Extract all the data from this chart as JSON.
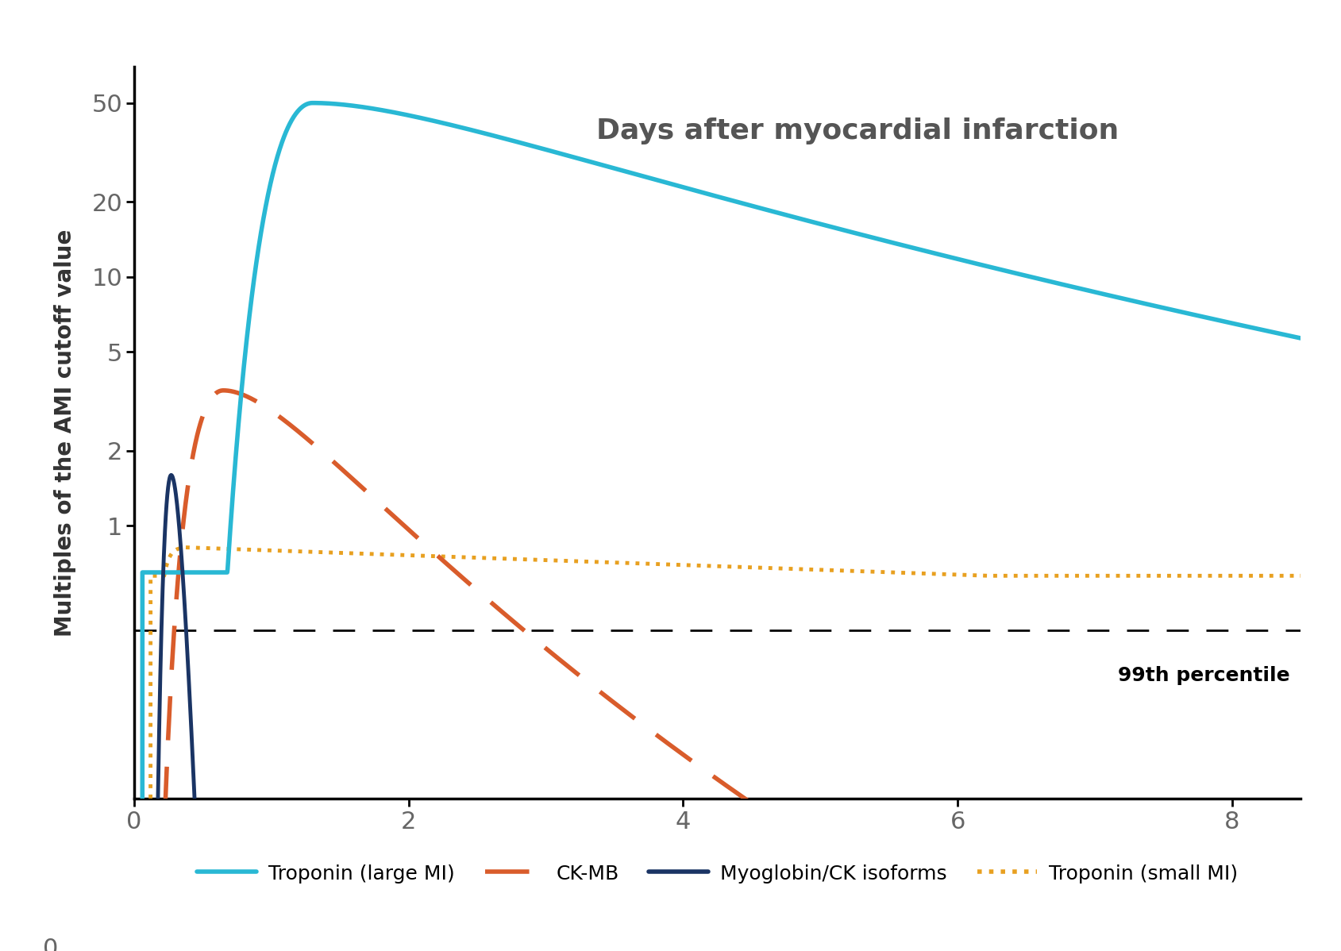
{
  "title": "Days after myocardial infarction",
  "ylabel": "Multiples of the AMI cutoff value",
  "xlim": [
    0,
    8.5
  ],
  "ylim_log": [
    0.08,
    70
  ],
  "xticks": [
    0,
    2,
    4,
    6,
    8
  ],
  "yticks_log": [
    1,
    2,
    5,
    10,
    20,
    50
  ],
  "ytick_labels": [
    "1",
    "2",
    "5",
    "10",
    "20",
    "50"
  ],
  "y0_label": "0",
  "percentile_line": 0.38,
  "percentile_label": "99th percentile",
  "background_color": "#ffffff",
  "troponin_large_color": "#29b8d4",
  "ckMB_color": "#d95c2b",
  "myoglobin_color": "#1a3464",
  "troponin_small_color": "#e8a020",
  "title_fontsize": 26,
  "label_fontsize": 20,
  "tick_fontsize": 22,
  "legend_fontsize": 18
}
